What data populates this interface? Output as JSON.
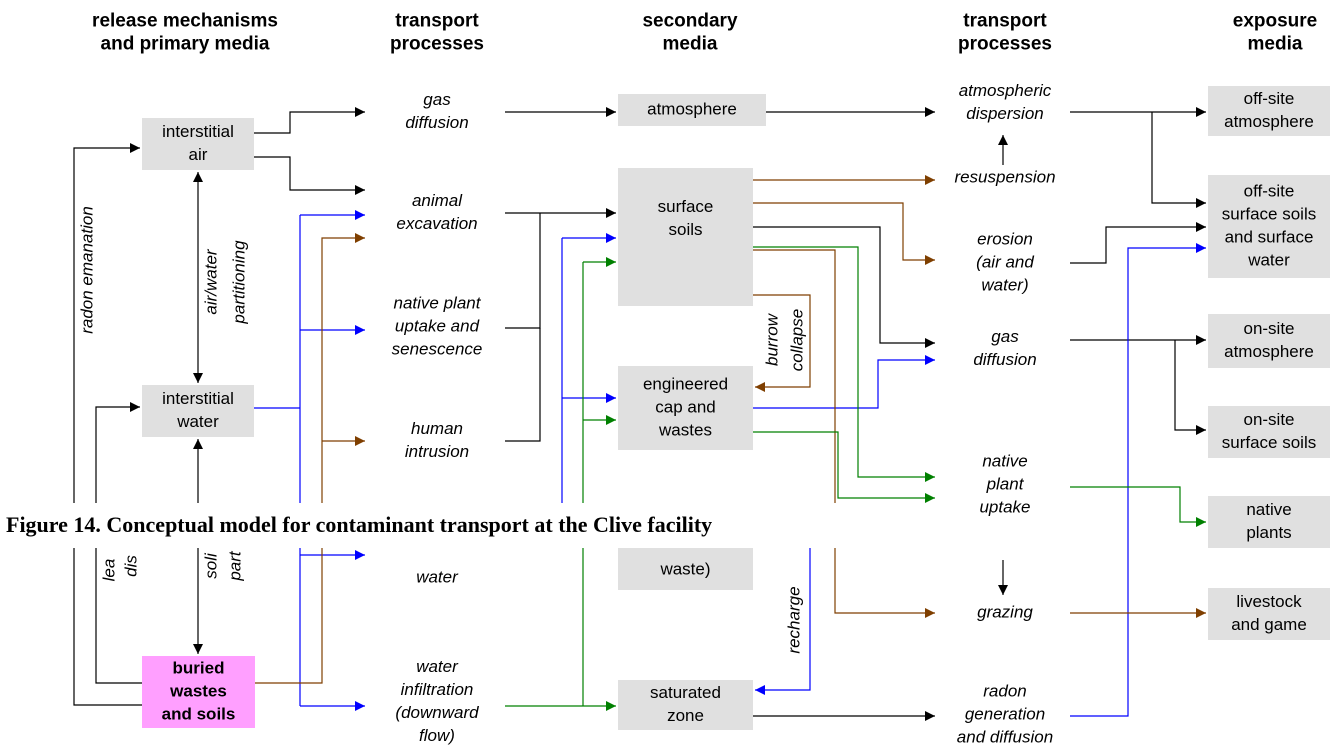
{
  "headers": [
    [
      "release mechanisms",
      "and primary media"
    ],
    [
      "transport",
      "processes"
    ],
    [
      "secondary",
      "media"
    ],
    [
      "transport",
      "processes"
    ],
    [
      "exposure",
      "media"
    ]
  ],
  "nodes": [
    [
      "interstitial",
      "air"
    ],
    [
      "interstitial",
      "water"
    ],
    [
      "buried",
      "wastes",
      "and soils"
    ],
    [
      "atmosphere"
    ],
    [
      "surface",
      "soils"
    ],
    [
      "engineered",
      "cap and",
      "wastes"
    ],
    [
      "waste)"
    ],
    [
      "saturated",
      "zone"
    ],
    [
      "off-site",
      "atmosphere"
    ],
    [
      "off-site",
      "surface soils",
      "and surface",
      "water"
    ],
    [
      "on-site",
      "atmosphere"
    ],
    [
      "on-site",
      "surface soils"
    ],
    [
      "native",
      "plants"
    ],
    [
      "livestock",
      "and game"
    ]
  ],
  "processes": [
    [
      "gas",
      "diffusion"
    ],
    [
      "animal",
      "excavation"
    ],
    [
      "native plant",
      "uptake and",
      "senescence"
    ],
    [
      "human",
      "intrusion"
    ],
    [
      "water"
    ],
    [
      "water",
      "infiltration",
      "(downward",
      "flow)"
    ],
    [
      "atmospheric",
      "dispersion"
    ],
    [
      "resuspension"
    ],
    [
      "erosion",
      "(air and",
      "water)"
    ],
    [
      "gas",
      "diffusion"
    ],
    [
      "native",
      "plant",
      "uptake"
    ],
    [
      "grazing"
    ],
    [
      "radon",
      "generation",
      "and diffusion"
    ]
  ],
  "rotated": [
    "radon emanation",
    "air/water",
    "partitioning",
    "burrow",
    "collapse",
    "recharge",
    "lea",
    "dis",
    "soli",
    "part"
  ],
  "caption": "Figure 14. Conceptual model for contaminant transport at the Clive facility"
}
